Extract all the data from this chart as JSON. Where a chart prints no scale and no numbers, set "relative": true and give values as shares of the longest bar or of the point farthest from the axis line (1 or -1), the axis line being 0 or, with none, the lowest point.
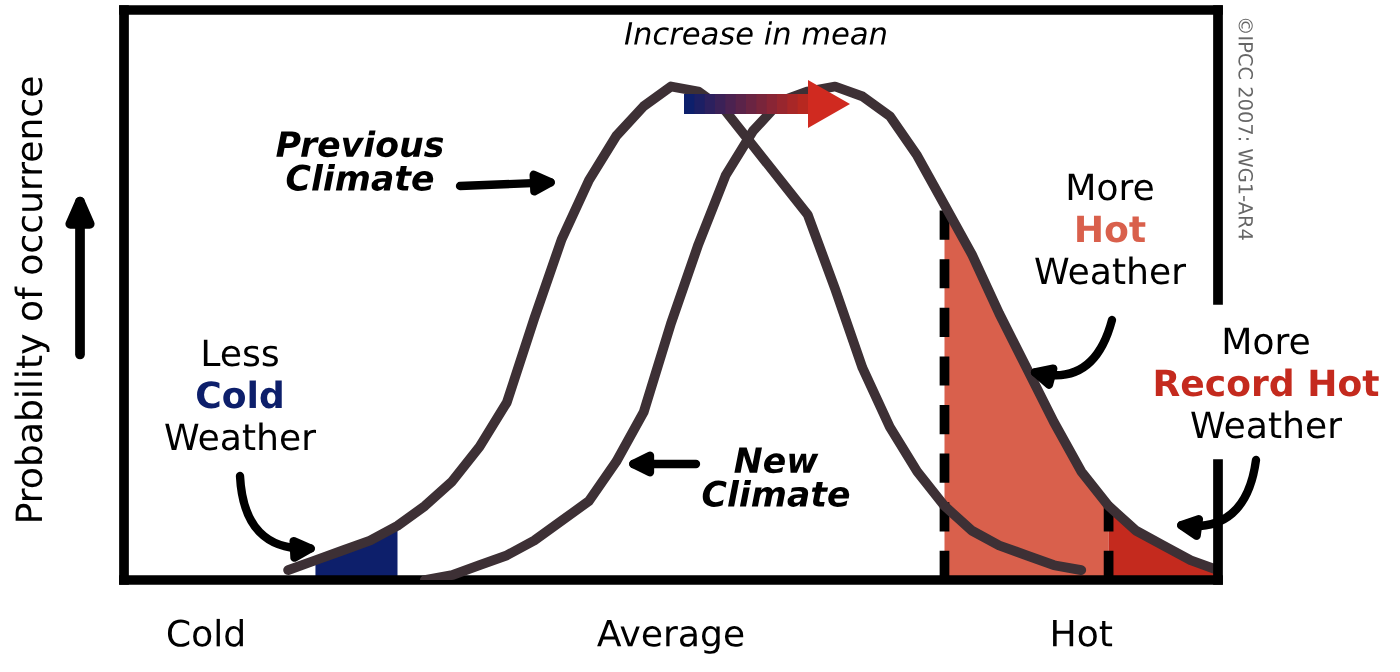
{
  "chart_data": {
    "type": "line",
    "relative": true,
    "ylabel": "Probability of occurrence",
    "categories": [
      null,
      null,
      null,
      "Cold",
      null,
      null,
      null,
      null,
      null,
      null,
      null,
      null,
      null,
      null,
      null,
      null,
      null,
      null,
      null,
      null,
      "Average",
      null,
      null,
      null,
      null,
      null,
      null,
      null,
      null,
      null,
      null,
      null,
      null,
      null,
      null,
      "Hot",
      null,
      null,
      null,
      null,
      null
    ],
    "legend": false,
    "marker": "none",
    "series": [
      {
        "type": "area",
        "color": "#0d1f6b",
        "values": [
          null,
          null,
          null,
          null,
          null,
          null,
          null,
          0.04,
          0.06,
          0.08,
          0.11,
          null,
          null,
          null,
          null,
          null,
          null,
          null,
          null,
          null,
          null,
          null,
          null,
          null,
          null,
          null,
          null,
          null,
          null,
          null,
          null,
          null,
          null,
          null,
          null,
          null,
          null,
          null,
          null,
          null,
          null
        ]
      },
      {
        "type": "area",
        "color": "#d9604c",
        "line_style": "dashed",
        "values": [
          null,
          null,
          null,
          null,
          null,
          null,
          null,
          null,
          null,
          null,
          null,
          null,
          null,
          null,
          null,
          null,
          null,
          null,
          null,
          null,
          null,
          null,
          null,
          null,
          null,
          null,
          null,
          null,
          null,
          null,
          0.76,
          0.66,
          0.54,
          0.43,
          0.32,
          0.22,
          0.15,
          null,
          null,
          null,
          null
        ]
      },
      {
        "type": "area",
        "color": "#c42a1e",
        "line_style": "dashed",
        "values": [
          null,
          null,
          null,
          null,
          null,
          null,
          null,
          null,
          null,
          null,
          null,
          null,
          null,
          null,
          null,
          null,
          null,
          null,
          null,
          null,
          null,
          null,
          null,
          null,
          null,
          null,
          null,
          null,
          null,
          null,
          null,
          null,
          null,
          null,
          null,
          null,
          0.15,
          0.1,
          0.07,
          0.04,
          0.02
        ]
      },
      {
        "color": "#3d3035",
        "line_style": "solid",
        "values": [
          null,
          null,
          null,
          null,
          null,
          null,
          0.02,
          0.04,
          0.06,
          0.08,
          0.11,
          0.15,
          0.2,
          0.27,
          0.36,
          0.53,
          0.69,
          0.81,
          0.9,
          0.96,
          1,
          0.99,
          0.95,
          0.88,
          0.81,
          0.74,
          0.59,
          0.43,
          0.31,
          0.22,
          0.15,
          0.1,
          0.07,
          0.05,
          0.03,
          0.02,
          null,
          null,
          null,
          null,
          null
        ]
      },
      {
        "color": "#3d3035",
        "line_style": "solid",
        "values": [
          null,
          null,
          null,
          null,
          null,
          null,
          null,
          null,
          null,
          null,
          null,
          0,
          0.01,
          0.03,
          0.05,
          0.08,
          0.12,
          0.16,
          0.24,
          0.34,
          0.52,
          0.68,
          0.82,
          0.91,
          0.97,
          0.99,
          1,
          0.98,
          0.94,
          0.86,
          0.76,
          0.66,
          0.54,
          0.43,
          0.32,
          0.22,
          0.15,
          0.1,
          0.07,
          0.04,
          0.02
        ]
      }
    ],
    "annotations": [
      "Increase in mean",
      "Previous\nClimate",
      "New\nClimate",
      "Less",
      "Cold",
      "Weather",
      "More",
      "Hot",
      "Weather",
      "More",
      "Record Hot",
      "Weather",
      "©IPCC 2007: WG1-AR4"
    ]
  }
}
